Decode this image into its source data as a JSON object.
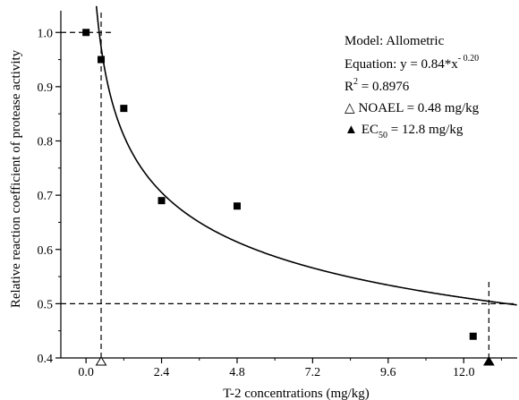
{
  "chart_data": {
    "type": "scatter",
    "xlabel": "T-2 concentrations (mg/kg)",
    "ylabel": "Relative reaction coefficient of protease activity",
    "xlim": [
      -0.8,
      13.7
    ],
    "ylim": [
      0.4,
      1.04
    ],
    "x_ticks": [
      0.0,
      2.4,
      4.8,
      7.2,
      9.6,
      12.0
    ],
    "x_tick_labels": [
      "0.0",
      "2.4",
      "4.8",
      "7.2",
      "9.6",
      "12.0"
    ],
    "y_ticks": [
      0.4,
      0.5,
      0.6,
      0.7,
      0.8,
      0.9,
      1.0
    ],
    "y_tick_labels": [
      "0.4",
      "0.5",
      "0.6",
      "0.7",
      "0.8",
      "0.9",
      "1.0"
    ],
    "points": [
      {
        "x": 0.0,
        "y": 1.0
      },
      {
        "x": 0.48,
        "y": 0.95
      },
      {
        "x": 1.2,
        "y": 0.86
      },
      {
        "x": 2.4,
        "y": 0.69
      },
      {
        "x": 4.8,
        "y": 0.68
      },
      {
        "x": 12.3,
        "y": 0.44
      }
    ],
    "fit": {
      "a": 0.84,
      "b": -0.2
    },
    "reference_lines": {
      "noael_x": 0.48,
      "ec50_x": 12.8,
      "y_one": 1.0,
      "y_half": 0.5
    },
    "markers": {
      "noael": {
        "x": 0.48,
        "symbol": "open-triangle"
      },
      "ec50": {
        "x": 12.8,
        "symbol": "filled-triangle"
      }
    },
    "annotations": {
      "model": "Model: Allometric",
      "equation_prefix": "Equation: y = 0.84*x",
      "equation_exponent": "- 0.20",
      "r2_prefix": "R",
      "r2_sup": "2",
      "r2_value": " = 0.8976",
      "noael_symbol": "△",
      "noael_text": "NOAEL = 0.48 mg/kg",
      "ec50_symbol": "▲",
      "ec50_prefix": "EC",
      "ec50_sub": "50",
      "ec50_value": " = 12.8 mg/kg"
    },
    "grid": false,
    "colors": {
      "marks": "#000000",
      "background": "#ffffff"
    }
  }
}
